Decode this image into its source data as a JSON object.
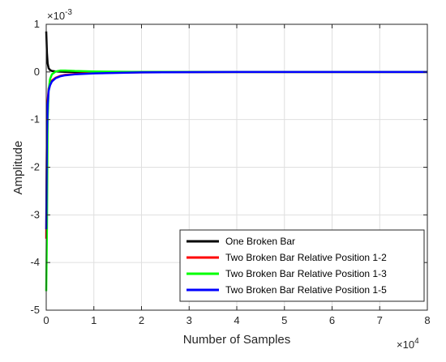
{
  "chart_data": {
    "type": "line",
    "title": "",
    "xlabel": "Number of Samples",
    "ylabel": "Amplitude",
    "xlim": [
      0,
      80000
    ],
    "ylim": [
      -0.005,
      0.001
    ],
    "x_exponent_label": "×10",
    "x_exponent_power": "4",
    "y_exponent_label": "×10",
    "y_exponent_power": "-3",
    "x_tick_values": [
      0,
      10000,
      20000,
      30000,
      40000,
      50000,
      60000,
      70000,
      80000
    ],
    "x_tick_labels": [
      "0",
      "1",
      "2",
      "3",
      "4",
      "5",
      "6",
      "7",
      "8"
    ],
    "y_tick_values": [
      0.001,
      0,
      -0.001,
      -0.002,
      -0.003,
      -0.004,
      -0.005
    ],
    "y_tick_labels": [
      "1",
      "0",
      "-1",
      "-2",
      "-3",
      "-4",
      "-5"
    ],
    "grid": true,
    "legend_position": "bottom-right",
    "series": [
      {
        "name": "One Broken Bar",
        "color": "#000000",
        "x": [
          0,
          150,
          300,
          500,
          800,
          1200,
          2000,
          3000,
          4000,
          6000,
          10000,
          20000,
          40000,
          80000
        ],
        "y": [
          0.00085,
          0.0004,
          0.00018,
          8e-05,
          4e-05,
          2e-05,
          1e-05,
          5e-06,
          2e-06,
          1e-06,
          0,
          0,
          0,
          0
        ]
      },
      {
        "name": "Two Broken Bar Relative Position 1-2",
        "color": "#ff0000",
        "x": [
          0,
          150,
          300,
          500,
          800,
          1200,
          2000,
          3000,
          4000,
          6000,
          10000,
          20000,
          40000,
          80000
        ],
        "y": [
          -0.0035,
          -0.0012,
          -0.0006,
          -0.00035,
          -0.00025,
          -0.00018,
          -0.00012,
          -8e-05,
          -6e-05,
          -4e-05,
          -2e-05,
          -1e-05,
          0,
          0
        ]
      },
      {
        "name": "Two Broken Bar Relative Position 1-3",
        "color": "#00ff00",
        "x": [
          0,
          150,
          300,
          500,
          800,
          1200,
          2000,
          3000,
          4000,
          6000,
          10000,
          20000,
          40000,
          80000
        ],
        "y": [
          -0.0046,
          -0.0033,
          -0.001,
          -0.0004,
          -0.00015,
          -5e-05,
          1e-05,
          3e-05,
          3e-05,
          2e-05,
          1e-05,
          0,
          0,
          0
        ]
      },
      {
        "name": "Two Broken Bar Relative Position 1-5",
        "color": "#0000ff",
        "x": [
          0,
          150,
          300,
          500,
          800,
          1200,
          2000,
          3000,
          4000,
          6000,
          10000,
          20000,
          40000,
          80000
        ],
        "y": [
          -0.0033,
          -0.0013,
          -0.0007,
          -0.0004,
          -0.00028,
          -0.0002,
          -0.00013,
          -9e-05,
          -7e-05,
          -5e-05,
          -3e-05,
          -1e-05,
          0,
          0
        ]
      }
    ]
  }
}
